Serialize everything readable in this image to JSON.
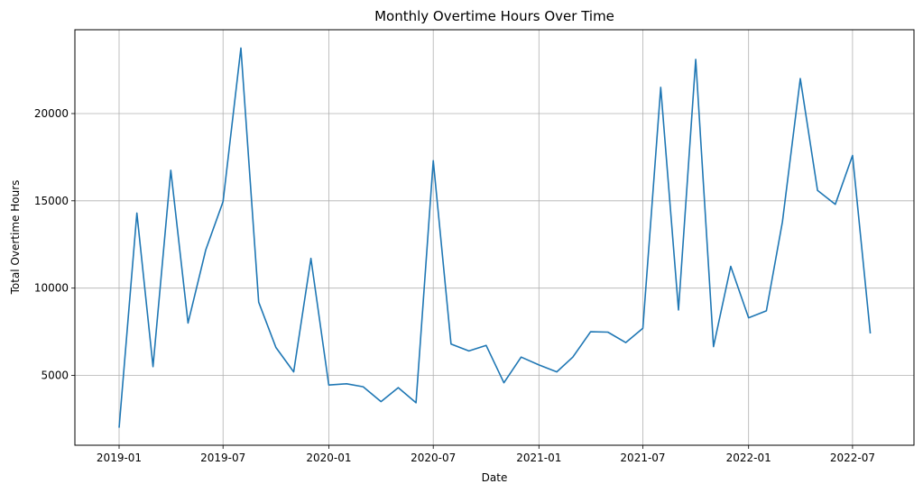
{
  "chart_data": {
    "type": "line",
    "title": "Monthly Overtime Hours Over Time",
    "xlabel": "Date",
    "ylabel": "Total Overtime Hours",
    "grid": true,
    "legend": "none",
    "line_color": "#1f77b4",
    "x_tick_labels": [
      "2019-01",
      "2019-07",
      "2020-01",
      "2020-07",
      "2021-01",
      "2021-07",
      "2022-01",
      "2022-07"
    ],
    "y_tick_labels": [
      "5000",
      "10000",
      "15000",
      "20000"
    ],
    "y_ticks": [
      5000,
      10000,
      15000,
      20000
    ],
    "ylim": [
      1000,
      24800
    ],
    "xlim": [
      "2018-10-16",
      "2022-10-16"
    ],
    "x": [
      "2019-01",
      "2019-02",
      "2019-03",
      "2019-04",
      "2019-05",
      "2019-06",
      "2019-07",
      "2019-08",
      "2019-09",
      "2019-10",
      "2019-11",
      "2019-12",
      "2020-01",
      "2020-02",
      "2020-03",
      "2020-04",
      "2020-05",
      "2020-06",
      "2020-07",
      "2020-08",
      "2020-09",
      "2020-10",
      "2020-11",
      "2020-12",
      "2021-01",
      "2021-02",
      "2021-03",
      "2021-04",
      "2021-05",
      "2021-06",
      "2021-07",
      "2021-08",
      "2021-09",
      "2021-10",
      "2021-11",
      "2021-12",
      "2022-01",
      "2022-02",
      "2022-03",
      "2022-04",
      "2022-05",
      "2022-06",
      "2022-07",
      "2022-08"
    ],
    "series": [
      {
        "values": [
          2000,
          14300,
          5500,
          16750,
          8000,
          12200,
          14950,
          23750,
          9200,
          6600,
          5200,
          11700,
          4450,
          4520,
          4350,
          3500,
          4300,
          3430,
          17300,
          6800,
          6400,
          6720,
          4580,
          6050,
          5600,
          5200,
          6050,
          7500,
          7480,
          6880,
          7700,
          21500,
          8750,
          23100,
          6650,
          11250,
          8300,
          8700,
          13800,
          22000,
          15600,
          14800,
          17600,
          7400
        ]
      }
    ]
  }
}
